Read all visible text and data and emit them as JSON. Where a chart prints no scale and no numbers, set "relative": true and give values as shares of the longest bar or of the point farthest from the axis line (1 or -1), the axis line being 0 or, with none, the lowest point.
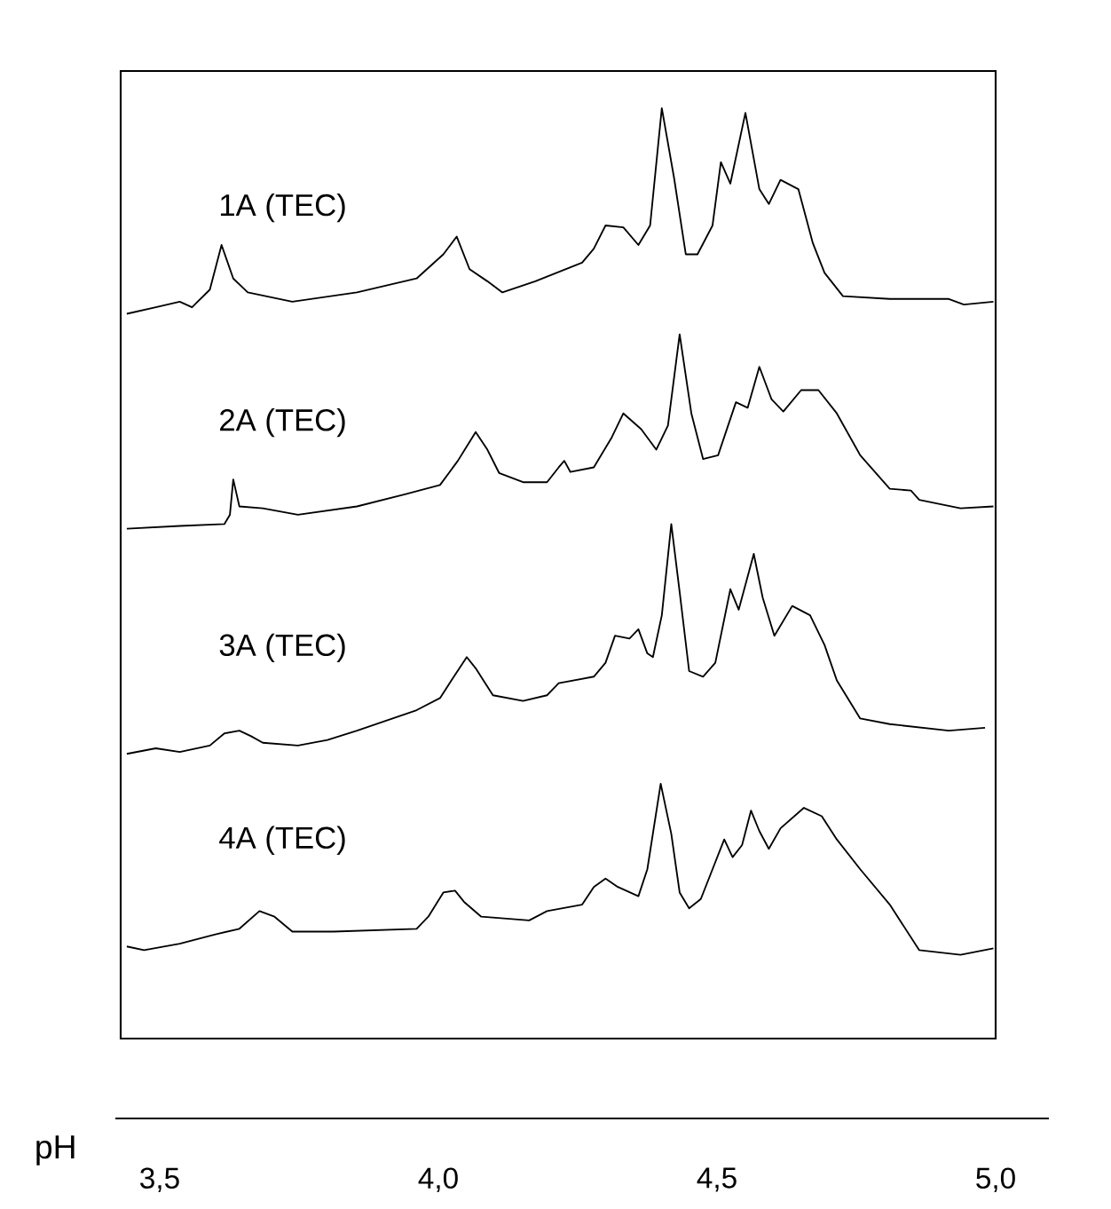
{
  "chart_data": {
    "type": "line",
    "relative": true,
    "xlabel": "pH",
    "tick_labels": "x",
    "xlim": [
      3.43,
      5.0
    ],
    "xticks": [
      {
        "value": 3.5,
        "label": "3,5"
      },
      {
        "value": 4.0,
        "label": "4,0"
      },
      {
        "value": 4.5,
        "label": "4,5"
      },
      {
        "value": 5.0,
        "label": "5,0"
      }
    ],
    "series": [
      {
        "name": "1A (TEC)",
        "color": "#000000",
        "x": [
          3.441,
          3.493,
          3.536,
          3.558,
          3.59,
          3.611,
          3.632,
          3.658,
          3.738,
          3.854,
          3.961,
          4.009,
          4.033,
          4.056,
          4.088,
          4.115,
          4.174,
          4.258,
          4.279,
          4.3,
          4.332,
          4.359,
          4.38,
          4.401,
          4.423,
          4.444,
          4.465,
          4.492,
          4.507,
          4.524,
          4.551,
          4.576,
          4.593,
          4.614,
          4.646,
          4.672,
          4.693,
          4.726,
          4.81,
          4.916,
          4.943,
          4.996
        ],
        "values": [
          0.779,
          0.786,
          0.792,
          0.786,
          0.805,
          0.853,
          0.817,
          0.802,
          0.792,
          0.802,
          0.817,
          0.843,
          0.862,
          0.827,
          0.814,
          0.802,
          0.814,
          0.834,
          0.849,
          0.874,
          0.872,
          0.853,
          0.874,
          1.0,
          0.925,
          0.843,
          0.843,
          0.874,
          0.942,
          0.919,
          0.995,
          0.913,
          0.897,
          0.923,
          0.913,
          0.855,
          0.823,
          0.798,
          0.795,
          0.795,
          0.789,
          0.792
        ]
      },
      {
        "name": "2A (TEC)",
        "color": "#000000",
        "x": [
          3.441,
          3.536,
          3.616,
          3.626,
          3.632,
          3.643,
          3.685,
          3.748,
          3.854,
          3.94,
          4.003,
          4.035,
          4.067,
          4.088,
          4.109,
          4.152,
          4.195,
          4.216,
          4.226,
          4.237,
          4.279,
          4.311,
          4.332,
          4.364,
          4.391,
          4.412,
          4.433,
          4.454,
          4.475,
          4.502,
          4.534,
          4.555,
          4.576,
          4.598,
          4.619,
          4.651,
          4.682,
          4.715,
          4.757,
          4.81,
          4.848,
          4.863,
          4.937,
          4.996
        ],
        "values": [
          0.548,
          0.551,
          0.553,
          0.563,
          0.601,
          0.572,
          0.57,
          0.563,
          0.572,
          0.585,
          0.595,
          0.621,
          0.652,
          0.633,
          0.608,
          0.598,
          0.598,
          0.614,
          0.621,
          0.609,
          0.614,
          0.646,
          0.672,
          0.655,
          0.633,
          0.659,
          0.757,
          0.672,
          0.623,
          0.627,
          0.684,
          0.678,
          0.722,
          0.687,
          0.674,
          0.697,
          0.697,
          0.672,
          0.627,
          0.591,
          0.589,
          0.579,
          0.57,
          0.572
        ]
      },
      {
        "name": "3A (TEC)",
        "color": "#000000",
        "x": [
          3.441,
          3.493,
          3.536,
          3.59,
          3.616,
          3.643,
          3.664,
          3.685,
          3.748,
          3.801,
          3.854,
          3.961,
          4.003,
          4.03,
          4.051,
          4.067,
          4.098,
          4.152,
          4.195,
          4.216,
          4.279,
          4.3,
          4.317,
          4.343,
          4.359,
          4.375,
          4.385,
          4.401,
          4.418,
          4.433,
          4.45,
          4.475,
          4.497,
          4.524,
          4.539,
          4.566,
          4.582,
          4.603,
          4.635,
          4.667,
          4.693,
          4.715,
          4.757,
          4.81,
          4.916,
          4.981
        ],
        "values": [
          0.306,
          0.312,
          0.308,
          0.315,
          0.328,
          0.331,
          0.325,
          0.318,
          0.315,
          0.321,
          0.331,
          0.353,
          0.366,
          0.391,
          0.41,
          0.398,
          0.369,
          0.363,
          0.369,
          0.382,
          0.389,
          0.404,
          0.433,
          0.43,
          0.44,
          0.414,
          0.41,
          0.455,
          0.553,
          0.48,
          0.395,
          0.389,
          0.404,
          0.483,
          0.461,
          0.521,
          0.474,
          0.433,
          0.465,
          0.455,
          0.423,
          0.385,
          0.344,
          0.338,
          0.331,
          0.334
        ]
      },
      {
        "name": "4A (TEC)",
        "color": "#000000",
        "x": [
          3.441,
          3.472,
          3.536,
          3.6,
          3.643,
          3.679,
          3.706,
          3.738,
          3.812,
          3.961,
          3.982,
          4.009,
          4.03,
          4.046,
          4.077,
          4.163,
          4.195,
          4.258,
          4.279,
          4.3,
          4.322,
          4.359,
          4.375,
          4.399,
          4.418,
          4.433,
          4.45,
          4.471,
          4.492,
          4.513,
          4.528,
          4.545,
          4.561,
          4.576,
          4.593,
          4.614,
          4.656,
          4.688,
          4.715,
          4.757,
          4.81,
          4.863,
          4.937,
          4.996
        ],
        "values": [
          0.099,
          0.095,
          0.102,
          0.112,
          0.118,
          0.137,
          0.131,
          0.115,
          0.115,
          0.118,
          0.131,
          0.157,
          0.159,
          0.147,
          0.131,
          0.127,
          0.137,
          0.144,
          0.163,
          0.172,
          0.163,
          0.153,
          0.182,
          0.274,
          0.22,
          0.157,
          0.14,
          0.15,
          0.182,
          0.214,
          0.195,
          0.208,
          0.245,
          0.223,
          0.204,
          0.226,
          0.248,
          0.239,
          0.214,
          0.182,
          0.144,
          0.095,
          0.09,
          0.097
        ]
      }
    ]
  }
}
